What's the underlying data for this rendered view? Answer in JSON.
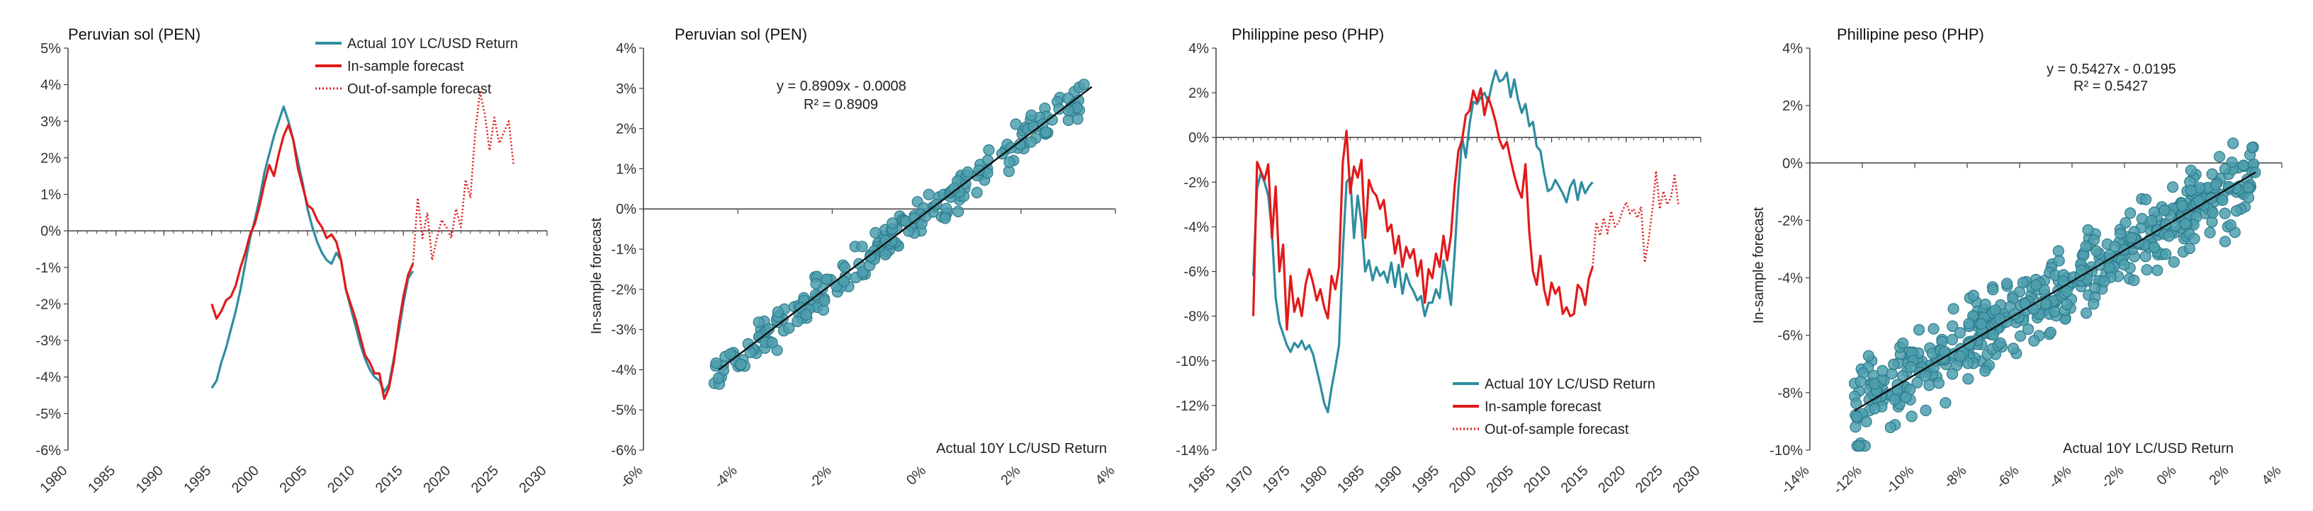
{
  "colors": {
    "actual": "#2e8da0",
    "forecast": "#e11a1a",
    "axis": "#404040",
    "point": "#4e9fae",
    "point_edge": "#2b7a8b",
    "fit": "#111111"
  },
  "chart_data": [
    {
      "id": "pen_ts",
      "type": "line",
      "title": "Peruvian sol (PEN)",
      "xlim": [
        1980,
        2030
      ],
      "ylim": [
        -6,
        5
      ],
      "xticks": [
        "1980",
        "1985",
        "1990",
        "1995",
        "2000",
        "2005",
        "2010",
        "2015",
        "2020",
        "2025",
        "2030"
      ],
      "yticks": [
        "-6%",
        "-5%",
        "-4%",
        "-3%",
        "-2%",
        "-1%",
        "0%",
        "1%",
        "2%",
        "3%",
        "4%",
        "5%"
      ],
      "legend": [
        "Actual 10Y LC/USD Return",
        "In-sample forecast",
        "Out-of-sample forecast"
      ],
      "series": [
        {
          "name": "Actual 10Y LC/USD Return",
          "style": "actual",
          "x": [
            1995.0,
            1995.5,
            1996.0,
            1996.5,
            1997.0,
            1997.5,
            1998.0,
            1998.5,
            1999.0,
            1999.5,
            2000.0,
            2000.5,
            2001.0,
            2001.5,
            2002.0,
            2002.5,
            2003.0,
            2003.5,
            2004.0,
            2004.5,
            2005.0,
            2005.5,
            2006.0,
            2006.5,
            2007.0,
            2007.5,
            2008.0,
            2008.5,
            2009.0,
            2009.5,
            2010.0,
            2010.5,
            2011.0,
            2011.5,
            2012.0,
            2012.5,
            2013.0,
            2013.5,
            2014.0,
            2014.5,
            2015.0,
            2015.5,
            2016.0
          ],
          "y": [
            -4.3,
            -4.1,
            -3.6,
            -3.2,
            -2.7,
            -2.2,
            -1.6,
            -0.9,
            -0.2,
            0.3,
            0.9,
            1.6,
            2.1,
            2.6,
            3.0,
            3.4,
            3.0,
            2.5,
            1.9,
            1.3,
            0.6,
            0.1,
            -0.3,
            -0.6,
            -0.8,
            -0.9,
            -0.6,
            -0.8,
            -1.6,
            -2.1,
            -2.6,
            -3.1,
            -3.5,
            -3.8,
            -4.0,
            -4.1,
            -4.4,
            -4.2,
            -3.5,
            -2.8,
            -2.0,
            -1.3,
            -1.1
          ]
        },
        {
          "name": "In-sample forecast",
          "style": "forecast",
          "x": [
            1995.0,
            1995.5,
            1996.0,
            1996.5,
            1997.0,
            1997.5,
            1998.0,
            1998.5,
            1999.0,
            1999.5,
            2000.0,
            2000.5,
            2001.0,
            2001.5,
            2002.0,
            2002.5,
            2003.0,
            2003.5,
            2004.0,
            2004.5,
            2005.0,
            2005.5,
            2006.0,
            2006.5,
            2007.0,
            2007.5,
            2008.0,
            2008.5,
            2009.0,
            2009.5,
            2010.0,
            2010.5,
            2011.0,
            2011.5,
            2012.0,
            2012.5,
            2013.0,
            2013.5,
            2014.0,
            2014.5,
            2015.0,
            2015.5,
            2016.0
          ],
          "y": [
            -2.0,
            -2.4,
            -2.2,
            -1.9,
            -1.8,
            -1.5,
            -1.0,
            -0.6,
            -0.1,
            0.2,
            0.7,
            1.3,
            1.8,
            1.5,
            2.1,
            2.6,
            2.9,
            2.5,
            1.7,
            1.2,
            0.7,
            0.6,
            0.3,
            0.1,
            -0.2,
            -0.1,
            -0.3,
            -0.8,
            -1.6,
            -2.0,
            -2.4,
            -2.9,
            -3.4,
            -3.6,
            -3.9,
            -3.9,
            -4.6,
            -4.3,
            -3.6,
            -2.6,
            -1.8,
            -1.2,
            -0.9
          ]
        },
        {
          "name": "Out-of-sample forecast",
          "style": "dotted",
          "x": [
            2016.0,
            2016.5,
            2017.0,
            2017.5,
            2018.0,
            2018.5,
            2019.0,
            2019.5,
            2020.0,
            2020.5,
            2021.0,
            2021.5,
            2022.0,
            2022.5,
            2023.0,
            2023.5,
            2024.0,
            2024.5,
            2025.0,
            2025.5,
            2026.0,
            2026.5
          ],
          "y": [
            -0.9,
            0.9,
            -0.2,
            0.5,
            -0.8,
            -0.2,
            0.3,
            0.1,
            -0.2,
            0.6,
            0.1,
            1.4,
            0.9,
            2.7,
            3.8,
            3.2,
            2.2,
            3.1,
            2.4,
            2.7,
            3.0,
            1.8
          ]
        }
      ]
    },
    {
      "id": "pen_scatter",
      "type": "scatter",
      "title": "Peruvian sol (PEN)",
      "xlim": [
        -6,
        4
      ],
      "ylim": [
        -6,
        4
      ],
      "xticks": [
        "-6%",
        "-4%",
        "-2%",
        "0%",
        "2%",
        "4%"
      ],
      "yticks": [
        "-6%",
        "-5%",
        "-4%",
        "-3%",
        "-2%",
        "-1%",
        "0%",
        "1%",
        "2%",
        "3%",
        "4%"
      ],
      "ylabel": "In-sample forecast",
      "xlabel": "Actual 10Y LC/USD Return",
      "equation": "y = 0.8909x - 0.0008",
      "r2": "R² = 0.8909",
      "fit": {
        "slope": 0.8909,
        "intercept": -0.08,
        "x0": -4.4,
        "x1": 3.5
      },
      "scatter_seed": {
        "count": 230,
        "xmin": -4.5,
        "xmax": 3.4,
        "noise": 0.45,
        "seed": 7
      }
    },
    {
      "id": "php_ts",
      "type": "line",
      "title": "Philippine peso (PHP)",
      "xlim": [
        1965,
        2030
      ],
      "ylim": [
        -14,
        4
      ],
      "xticks": [
        "1965",
        "1970",
        "1975",
        "1980",
        "1985",
        "1990",
        "1995",
        "2000",
        "2005",
        "2010",
        "2015",
        "2020",
        "2025",
        "2030"
      ],
      "yticks": [
        "-14%",
        "-12%",
        "-10%",
        "-8%",
        "-6%",
        "-4%",
        "-2%",
        "0%",
        "2%",
        "4%"
      ],
      "legend": [
        "Actual 10Y LC/USD Return",
        "In-sample forecast",
        "Out-of-sample forecast"
      ],
      "series": [
        {
          "name": "Actual 10Y LC/USD Return",
          "style": "actual",
          "x": [
            1970.0,
            1970.5,
            1971.0,
            1971.5,
            1972.0,
            1972.5,
            1973.0,
            1973.5,
            1974.0,
            1974.5,
            1975.0,
            1975.5,
            1976.0,
            1976.5,
            1977.0,
            1977.5,
            1978.0,
            1978.5,
            1979.0,
            1979.5,
            1980.0,
            1980.5,
            1981.0,
            1981.5,
            1982.0,
            1982.5,
            1983.0,
            1983.5,
            1984.0,
            1984.5,
            1985.0,
            1985.5,
            1986.0,
            1986.5,
            1987.0,
            1987.5,
            1988.0,
            1988.5,
            1989.0,
            1989.5,
            1990.0,
            1990.5,
            1991.0,
            1991.5,
            1992.0,
            1992.5,
            1993.0,
            1993.5,
            1994.0,
            1994.5,
            1995.0,
            1995.5,
            1996.0,
            1996.5,
            1997.0,
            1997.5,
            1998.0,
            1998.5,
            1999.0,
            1999.5,
            2000.0,
            2000.5,
            2001.0,
            2001.5,
            2002.0,
            2002.5,
            2003.0,
            2003.5,
            2004.0,
            2004.5,
            2005.0,
            2005.5,
            2006.0,
            2006.5,
            2007.0,
            2007.5,
            2008.0,
            2008.5,
            2009.0,
            2009.5,
            2010.0,
            2010.5,
            2011.0,
            2011.5,
            2012.0,
            2012.5,
            2013.0,
            2013.5,
            2014.0,
            2014.5,
            2015.0,
            2015.5
          ],
          "y": [
            -6.2,
            -2.3,
            -1.6,
            -2.0,
            -2.6,
            -4.2,
            -7.2,
            -8.3,
            -8.8,
            -9.3,
            -9.6,
            -9.2,
            -9.4,
            -9.1,
            -9.5,
            -9.3,
            -9.7,
            -10.4,
            -11.1,
            -11.9,
            -12.3,
            -11.2,
            -10.3,
            -9.3,
            -5.1,
            -2.0,
            -1.8,
            -4.5,
            -2.6,
            -3.8,
            -6.0,
            -5.5,
            -6.4,
            -5.8,
            -6.2,
            -6.0,
            -6.5,
            -5.6,
            -6.7,
            -5.7,
            -7.0,
            -6.1,
            -6.6,
            -6.9,
            -7.3,
            -7.1,
            -8.0,
            -7.4,
            -7.4,
            -6.8,
            -7.2,
            -5.5,
            -6.4,
            -7.5,
            -5.2,
            -2.3,
            0.0,
            -0.9,
            0.6,
            1.6,
            1.5,
            1.8,
            2.0,
            1.6,
            2.4,
            3.0,
            2.5,
            2.6,
            2.9,
            1.8,
            2.6,
            1.7,
            1.1,
            1.5,
            0.5,
            0.7,
            -0.4,
            -0.6,
            -1.6,
            -2.4,
            -2.3,
            -1.9,
            -2.2,
            -2.5,
            -2.9,
            -2.2,
            -1.9,
            -2.8,
            -2.0,
            -2.5,
            -2.2,
            -2.0
          ]
        },
        {
          "name": "In-sample forecast",
          "style": "forecast",
          "x": [
            1970.0,
            1970.5,
            1971.0,
            1971.5,
            1972.0,
            1972.5,
            1973.0,
            1973.5,
            1974.0,
            1974.5,
            1975.0,
            1975.5,
            1976.0,
            1976.5,
            1977.0,
            1977.5,
            1978.0,
            1978.5,
            1979.0,
            1979.5,
            1980.0,
            1980.5,
            1981.0,
            1981.5,
            1982.0,
            1982.5,
            1983.0,
            1983.5,
            1984.0,
            1984.5,
            1985.0,
            1985.5,
            1986.0,
            1986.5,
            1987.0,
            1987.5,
            1988.0,
            1988.5,
            1989.0,
            1989.5,
            1990.0,
            1990.5,
            1991.0,
            1991.5,
            1992.0,
            1992.5,
            1993.0,
            1993.5,
            1994.0,
            1994.5,
            1995.0,
            1995.5,
            1996.0,
            1996.5,
            1997.0,
            1997.5,
            1998.0,
            1998.5,
            1999.0,
            1999.5,
            2000.0,
            2000.5,
            2001.0,
            2001.5,
            2002.0,
            2002.5,
            2003.0,
            2003.5,
            2004.0,
            2004.5,
            2005.0,
            2005.5,
            2006.0,
            2006.5,
            2007.0,
            2007.5,
            2008.0,
            2008.5,
            2009.0,
            2009.5,
            2010.0,
            2010.5,
            2011.0,
            2011.5,
            2012.0,
            2012.5,
            2013.0,
            2013.5,
            2014.0,
            2014.5,
            2015.0,
            2015.5
          ],
          "y": [
            -8.0,
            -1.1,
            -1.5,
            -1.9,
            -1.2,
            -4.5,
            -2.2,
            -6.0,
            -4.8,
            -8.6,
            -6.2,
            -7.8,
            -7.2,
            -8.0,
            -6.6,
            -5.9,
            -6.5,
            -7.3,
            -6.8,
            -7.6,
            -8.1,
            -6.2,
            -6.8,
            -5.8,
            -1.1,
            0.3,
            -2.5,
            -1.3,
            -1.8,
            -1.0,
            -4.5,
            -1.9,
            -2.4,
            -2.6,
            -3.2,
            -2.8,
            -4.2,
            -3.9,
            -5.2,
            -4.4,
            -5.8,
            -4.9,
            -5.4,
            -5.0,
            -6.2,
            -5.5,
            -7.4,
            -5.9,
            -6.3,
            -5.2,
            -5.8,
            -4.4,
            -5.5,
            -4.4,
            -2.2,
            -0.6,
            -0.1,
            1.0,
            1.2,
            2.1,
            1.6,
            2.2,
            1.0,
            1.8,
            1.3,
            0.7,
            -0.1,
            -0.5,
            -0.2,
            -1.0,
            -1.7,
            -2.3,
            -2.7,
            -1.2,
            -4.2,
            -6.0,
            -6.6,
            -5.3,
            -6.8,
            -7.5,
            -6.5,
            -7.0,
            -6.7,
            -7.9,
            -7.6,
            -8.0,
            -7.9,
            -6.6,
            -6.8,
            -7.5,
            -6.3,
            -5.8
          ]
        },
        {
          "name": "Out-of-sample forecast",
          "style": "dotted",
          "x": [
            2015.5,
            2016.0,
            2016.5,
            2017.0,
            2017.5,
            2018.0,
            2018.5,
            2019.0,
            2019.5,
            2020.0,
            2020.5,
            2021.0,
            2021.5,
            2022.0,
            2022.5,
            2023.0,
            2023.5,
            2024.0,
            2024.5,
            2025.0,
            2025.5,
            2026.0,
            2026.5,
            2027.0
          ],
          "y": [
            -5.8,
            -3.8,
            -4.4,
            -3.6,
            -4.3,
            -3.3,
            -4.0,
            -3.8,
            -3.3,
            -2.9,
            -3.4,
            -3.2,
            -3.6,
            -3.1,
            -5.6,
            -4.6,
            -3.3,
            -1.5,
            -3.2,
            -2.4,
            -3.0,
            -2.7,
            -1.7,
            -3.0
          ]
        }
      ]
    },
    {
      "id": "php_scatter",
      "type": "scatter",
      "title": "Phillipine peso (PHP)",
      "xlim": [
        -14,
        4
      ],
      "ylim": [
        -10,
        4
      ],
      "xticks": [
        "-14%",
        "-12%",
        "-10%",
        "-8%",
        "-6%",
        "-4%",
        "-2%",
        "0%",
        "2%",
        "4%"
      ],
      "yticks": [
        "-10%",
        "-8%",
        "-6%",
        "-4%",
        "-2%",
        "0%",
        "2%",
        "4%"
      ],
      "ylabel": "In-sample forecast",
      "xlabel": "Actual 10Y LC/USD Return",
      "equation": "y = 0.5427x - 0.0195",
      "r2": "R² = 0.5427",
      "fit": {
        "slope": 0.5427,
        "intercept": -1.95,
        "x0": -12.3,
        "x1": 3.0
      },
      "scatter_seed": {
        "count": 520,
        "xmin": -12.3,
        "xmax": 3.0,
        "noise": 1.3,
        "seed": 11
      }
    }
  ]
}
